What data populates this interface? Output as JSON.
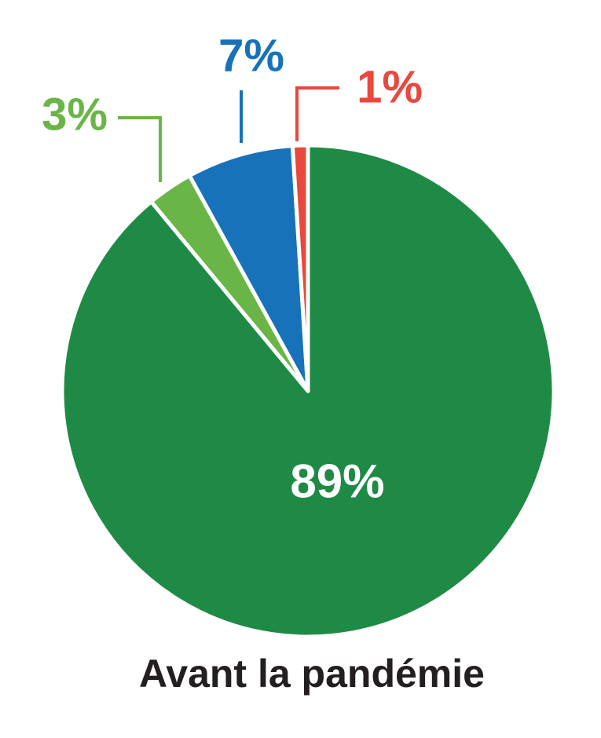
{
  "chart_data": {
    "type": "pie",
    "title": "Avant la pandémie",
    "values": [
      89,
      3,
      7,
      1
    ],
    "value_labels": [
      "89%",
      "3%",
      "7%",
      "1%"
    ],
    "colors": [
      "#1f8a45",
      "#6ab547",
      "#1872b9",
      "#e8483f"
    ]
  }
}
